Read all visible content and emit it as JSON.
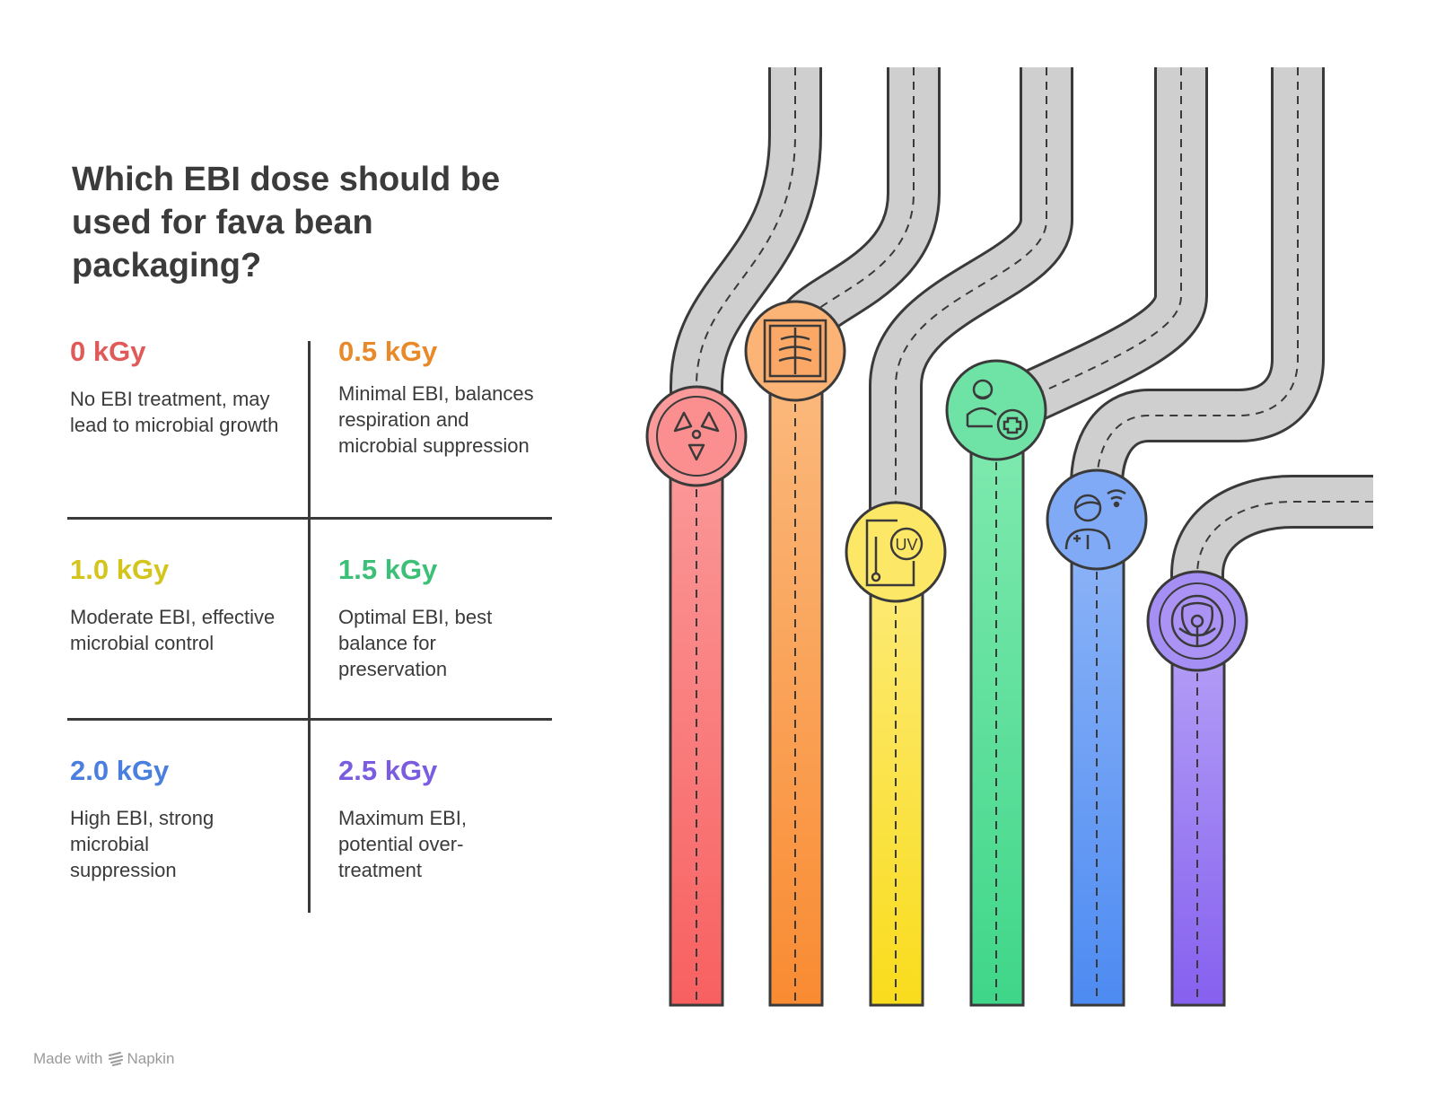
{
  "title": "Which EBI dose should be used for fava bean packaging?",
  "options": [
    {
      "dose": "0 kGy",
      "description": "No EBI treatment, may lead to microbial growth",
      "color": "#e05a5a",
      "icon": "radiation-icon"
    },
    {
      "dose": "0.5 kGy",
      "description": "Minimal EBI, balances respiration and microbial suppression",
      "color": "#e8892a",
      "icon": "xray-icon"
    },
    {
      "dose": "1.0 kGy",
      "description": "Moderate EBI, effective microbial control",
      "color": "#d4c51c",
      "icon": "uv-thermometer-icon"
    },
    {
      "dose": "1.5 kGy",
      "description": "Optimal EBI, best balance for preservation",
      "color": "#3cc078",
      "icon": "patient-care-icon"
    },
    {
      "dose": "2.0 kGy",
      "description": "High EBI, strong microbial suppression",
      "color": "#4a7fe0",
      "icon": "remote-health-icon"
    },
    {
      "dose": "2.5 kGy",
      "description": "Maximum EBI, potential over-treatment",
      "color": "#7a5ce0",
      "icon": "biohazard-icon"
    }
  ],
  "footer": {
    "made_with": "Made with",
    "brand": "Napkin"
  }
}
